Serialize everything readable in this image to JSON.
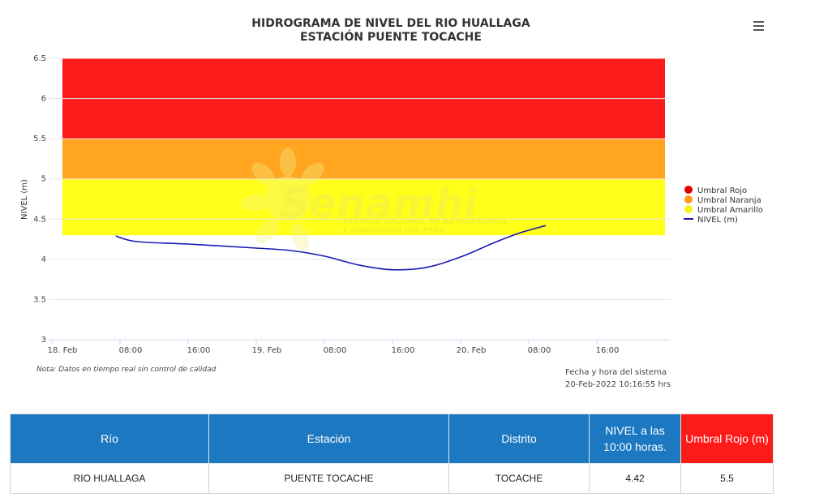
{
  "chart_data": {
    "type": "line",
    "title": [
      "HIDROGRAMA DE NIVEL DEL RIO HUALLAGA",
      "ESTACIÓN PUENTE TOCACHE"
    ],
    "ylabel": "NIVEL (m)",
    "ylim": [
      3,
      6.5
    ],
    "yticks": [
      "3",
      "3.5",
      "4",
      "4.5",
      "5",
      "5.5",
      "6",
      "6.5"
    ],
    "xlim": [
      "2022-02-18 00:00",
      "2022-02-21 00:00"
    ],
    "xticks": [
      {
        "hours": 0,
        "label": "18. Feb"
      },
      {
        "hours": 8,
        "label": "08:00"
      },
      {
        "hours": 16,
        "label": "16:00"
      },
      {
        "hours": 24,
        "label": "19. Feb"
      },
      {
        "hours": 32,
        "label": "08:00"
      },
      {
        "hours": 40,
        "label": "16:00"
      },
      {
        "hours": 48,
        "label": "20. Feb"
      },
      {
        "hours": 56,
        "label": "08:00"
      },
      {
        "hours": 64,
        "label": "16:00"
      }
    ],
    "bands": [
      {
        "name": "Umbral Amarillo",
        "from": 4.3,
        "to": 5.0,
        "color": "#ffff1a"
      },
      {
        "name": "Umbral Naranja",
        "from": 5.0,
        "to": 5.5,
        "color": "#ffa51f"
      },
      {
        "name": "Umbral Rojo",
        "from": 5.5,
        "to": 6.5,
        "color": "#ff1a1a"
      }
    ],
    "series": [
      {
        "name": "NIVEL (m)",
        "color": "#1a1ab3",
        "points": [
          {
            "x": "2022-02-18 07:30",
            "y": 4.29
          },
          {
            "x": "2022-02-18 10:00",
            "y": 4.22
          },
          {
            "x": "2022-02-18 16:00",
            "y": 4.19
          },
          {
            "x": "2022-02-19 00:00",
            "y": 4.14
          },
          {
            "x": "2022-02-19 04:00",
            "y": 4.11
          },
          {
            "x": "2022-02-19 08:00",
            "y": 4.04
          },
          {
            "x": "2022-02-19 12:00",
            "y": 3.93
          },
          {
            "x": "2022-02-19 16:00",
            "y": 3.87
          },
          {
            "x": "2022-02-19 20:00",
            "y": 3.9
          },
          {
            "x": "2022-02-20 00:00",
            "y": 4.03
          },
          {
            "x": "2022-02-20 04:00",
            "y": 4.21
          },
          {
            "x": "2022-02-20 07:00",
            "y": 4.33
          },
          {
            "x": "2022-02-20 10:00",
            "y": 4.42
          }
        ]
      }
    ],
    "legend": [
      {
        "label": "Umbral Rojo",
        "symbol": "circle",
        "color": "#e00000"
      },
      {
        "label": "Umbral Naranja",
        "symbol": "circle",
        "color": "#ff9a1a"
      },
      {
        "label": "Umbral Amarillo",
        "symbol": "circle",
        "color": "#f4f41a"
      },
      {
        "label": "NIVEL (m)",
        "symbol": "line",
        "color": "#1a1ab3"
      }
    ],
    "legend_position": "right"
  },
  "watermark": {
    "text": "Senamhi",
    "subtitle": [
      "SERVICIO NACIONAL DE METEOROLOGÍA",
      "E HIDROLOGÍA DEL PERÚ"
    ]
  },
  "note": "Nota: Datos en tiempo real sin control de calidad",
  "system_time": {
    "label": "Fecha y hora del sistema",
    "value": "20-Feb-2022 10:16:55 hrs"
  },
  "menu": {
    "icon": "hamburger-menu-icon"
  },
  "table": {
    "headers": [
      "Río",
      "Estación",
      "Distrito",
      "NIVEL a las 10:00 horas.",
      "Umbral Rojo (m)"
    ],
    "row": [
      "RIO HUALLAGA",
      "PUENTE TOCACHE",
      "TOCACHE",
      "4.42",
      "5.5"
    ],
    "header_color": "#1c78c0",
    "red_header_color": "#ff1a1a"
  }
}
